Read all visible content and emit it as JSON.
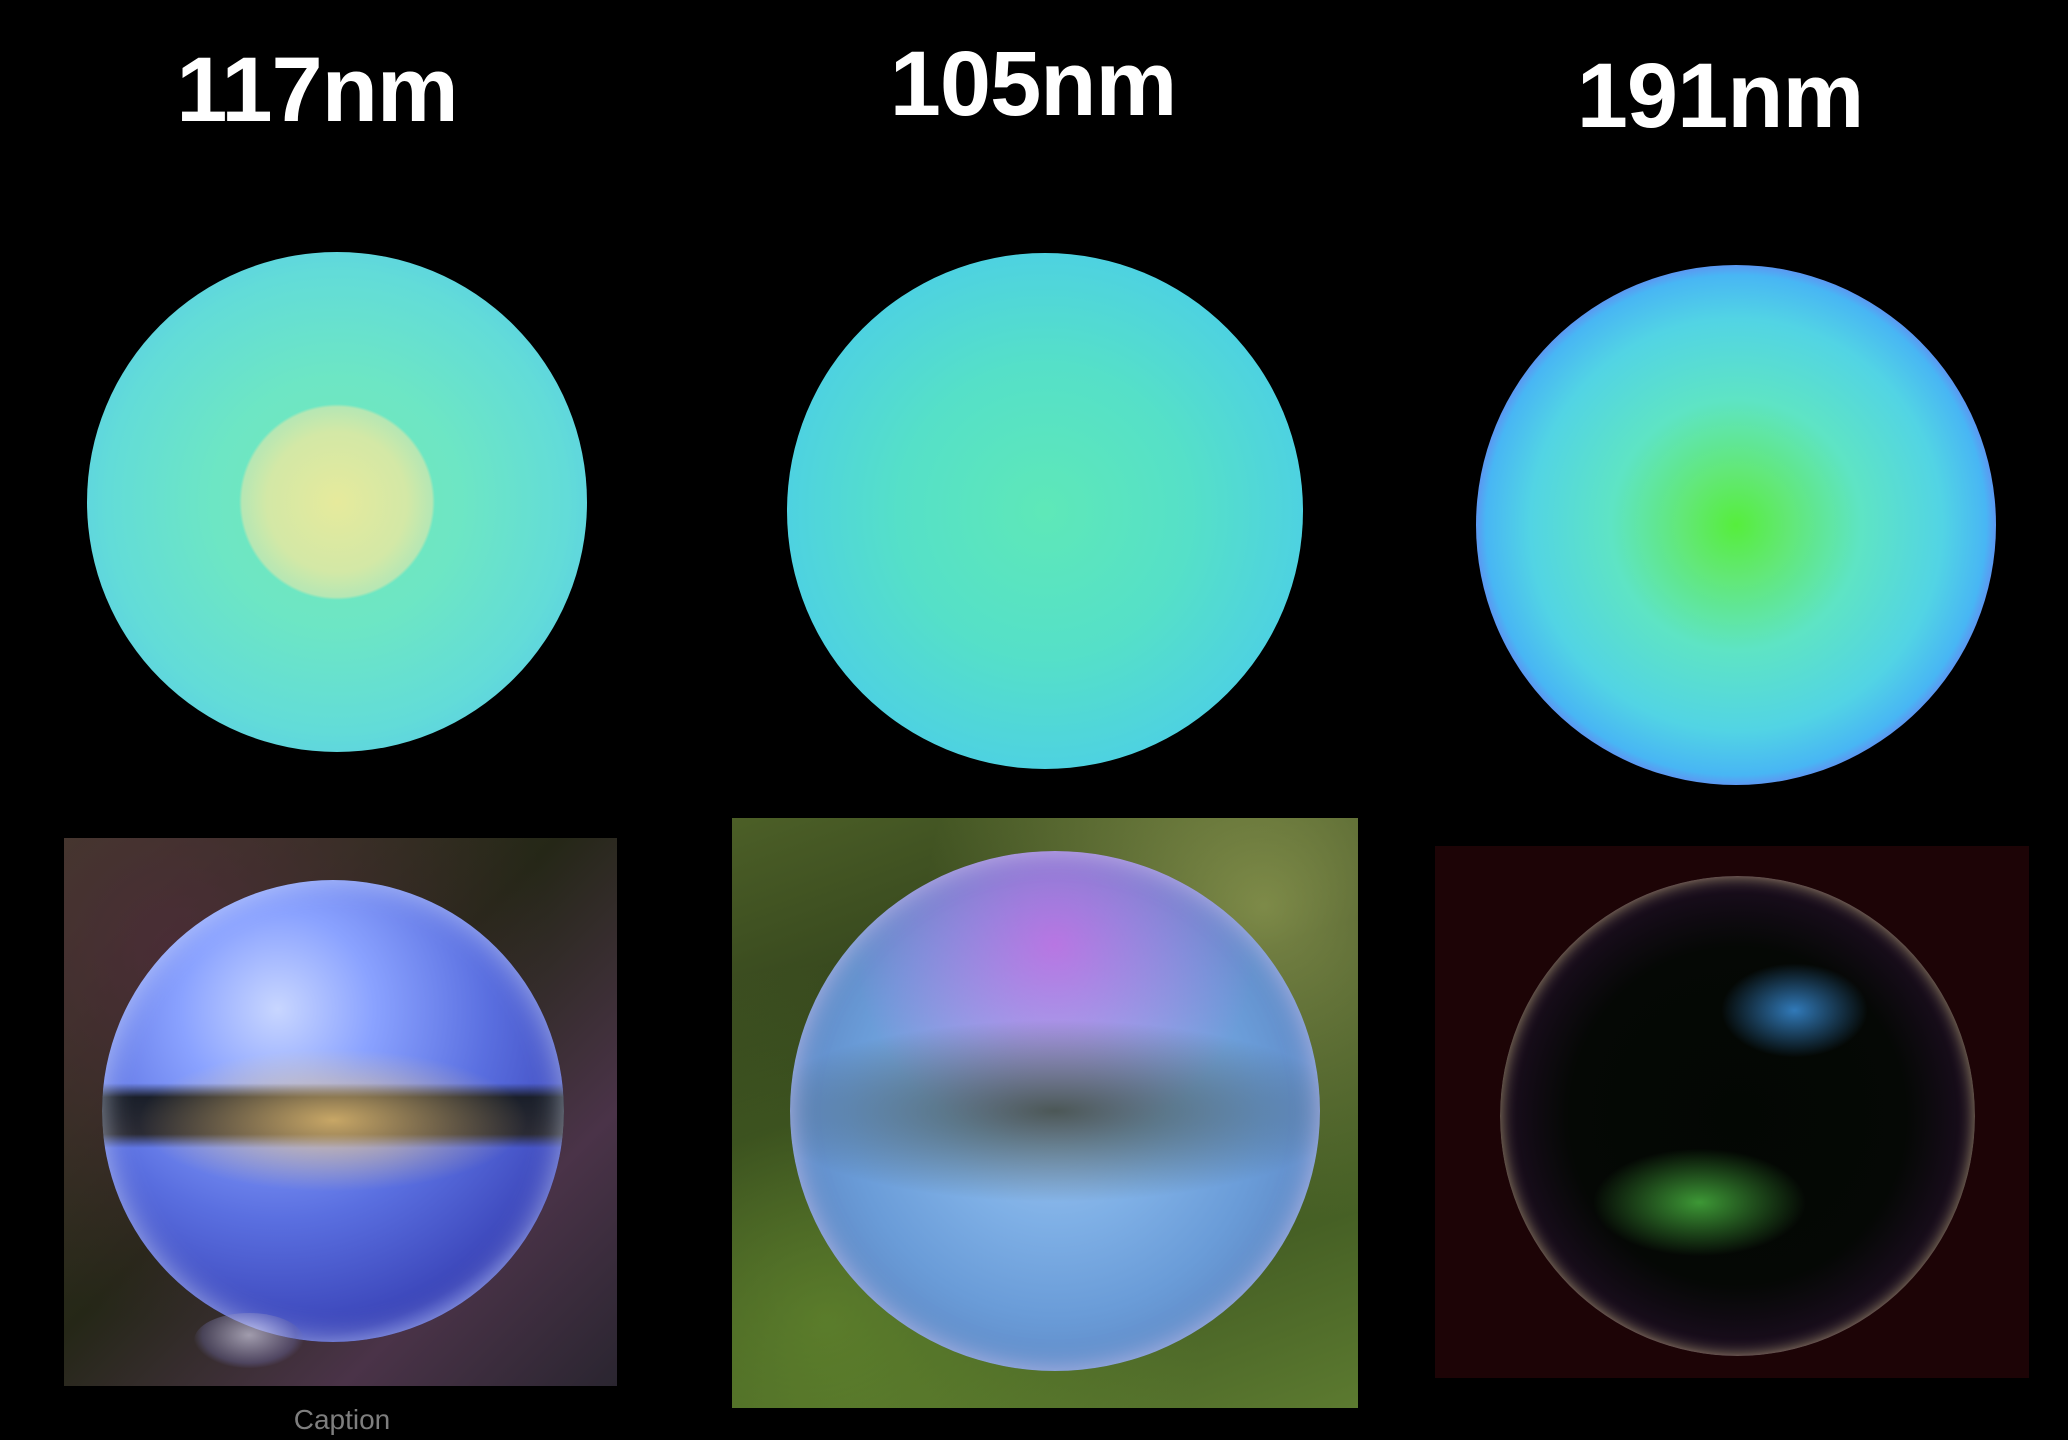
{
  "thickness_labels": [
    "117nm",
    "105nm",
    "191nm"
  ],
  "caption": "Caption",
  "colors": {
    "background": "#000000",
    "label_text": "#ffffff",
    "caption_text": "#7e7e7e"
  }
}
